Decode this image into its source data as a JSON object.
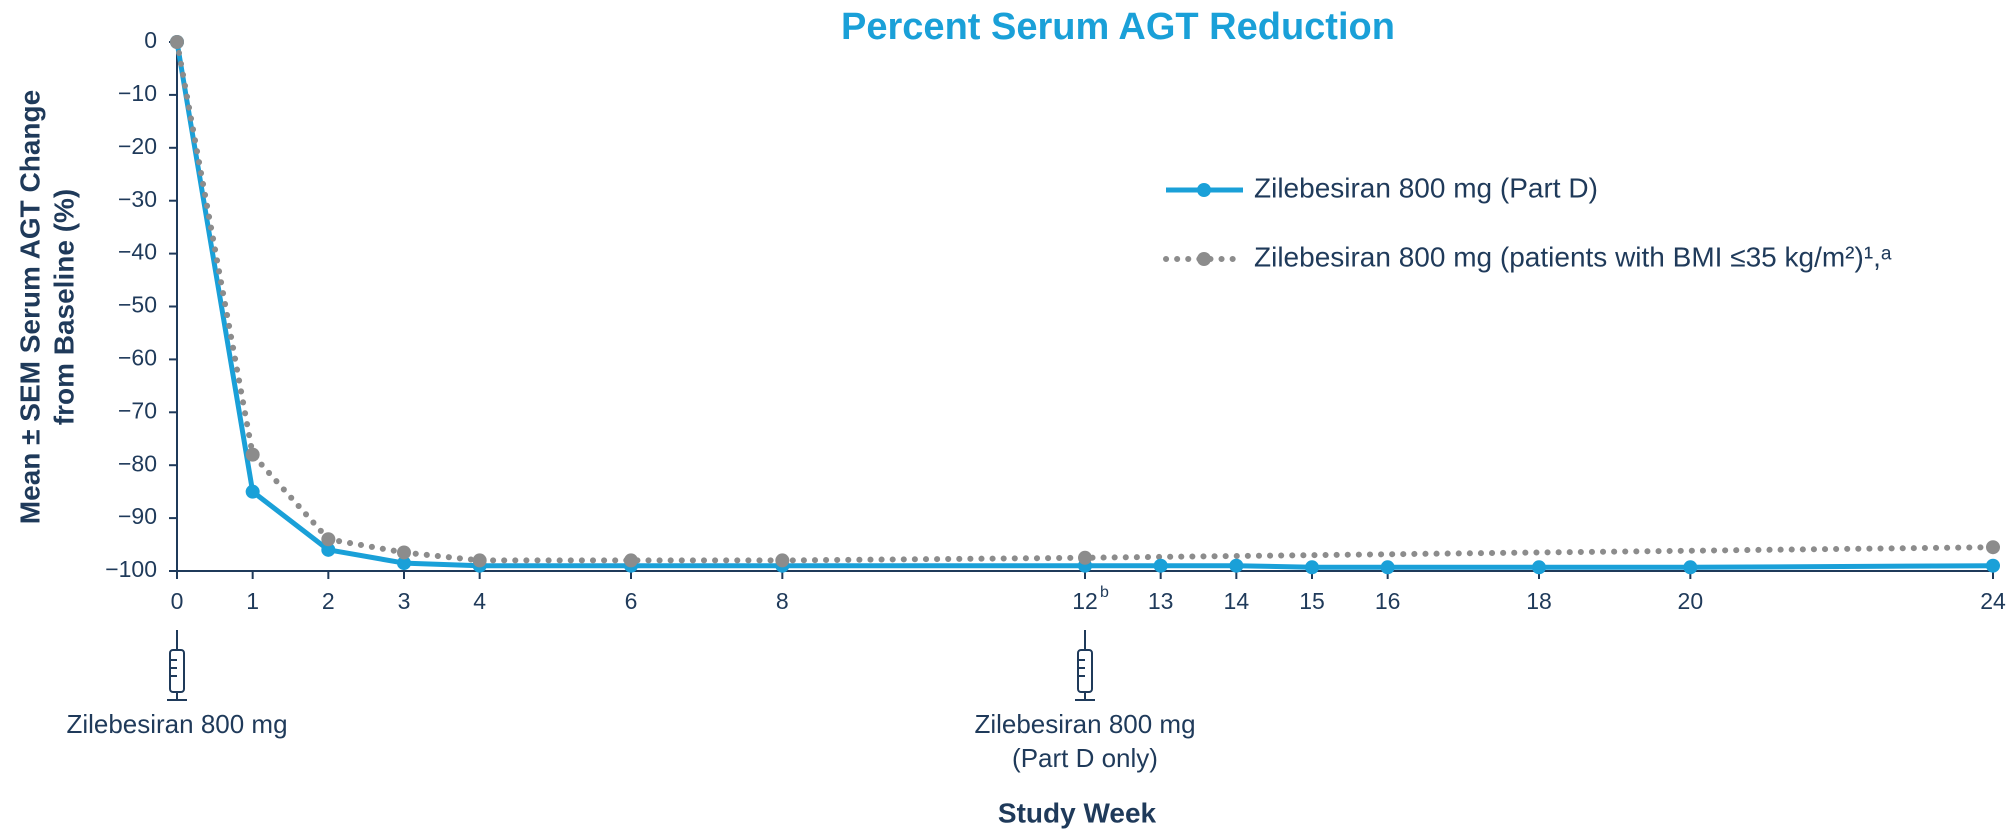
{
  "chart_data": {
    "type": "line",
    "title": "Percent Serum AGT Reduction",
    "ylabel": [
      "Mean ± SEM Serum AGT Change",
      "from Baseline (%)"
    ],
    "xlabel": "Study Week",
    "xlim": [
      0,
      24
    ],
    "xticks": [
      0,
      1,
      2,
      3,
      4,
      6,
      8,
      {
        "value": 12,
        "label": "12",
        "footnote": "b"
      },
      13,
      14,
      15,
      16,
      18,
      20,
      24
    ],
    "ylim": [
      -100,
      0
    ],
    "yticks": [
      0,
      {
        "value": -10,
        "label": "−10"
      },
      {
        "value": -20,
        "label": "−20"
      },
      {
        "value": -30,
        "label": "−30"
      },
      {
        "value": -40,
        "label": "−40"
      },
      {
        "value": -50,
        "label": "−50"
      },
      {
        "value": -60,
        "label": "−60"
      },
      {
        "value": -70,
        "label": "−70"
      },
      {
        "value": -80,
        "label": "−80"
      },
      {
        "value": -90,
        "label": "−90"
      },
      {
        "value": -100,
        "label": "−100"
      }
    ],
    "series": [
      {
        "name": "Zilebesiran 800 mg (Part D)",
        "color": "#1aa0d8",
        "style": "solid",
        "x": [
          0,
          1,
          2,
          3,
          4,
          6,
          8,
          12,
          13,
          14,
          15,
          16,
          18,
          20,
          24
        ],
        "values": [
          0,
          -85,
          -96,
          -98.5,
          -99,
          -99,
          -99,
          -99,
          -99,
          -99,
          -99.3,
          -99.3,
          -99.3,
          -99.3,
          -99
        ]
      },
      {
        "name": "Zilebesiran 800 mg (patients with BMI ≤35 kg/m²)¹,ᵃ",
        "color": "#8c8c8c",
        "style": "dotted",
        "x": [
          0,
          1,
          2,
          3,
          4,
          6,
          8,
          12,
          24
        ],
        "values": [
          0,
          -78,
          -94,
          -96.5,
          -98,
          -98,
          -98,
          -97.5,
          -95.5
        ]
      }
    ],
    "annotations": [
      {
        "x": 0,
        "lines": [
          "Zilebesiran 800 mg"
        ]
      },
      {
        "x": 12,
        "lines": [
          "Zilebesiran 800 mg",
          "(Part D only)"
        ]
      }
    ]
  }
}
